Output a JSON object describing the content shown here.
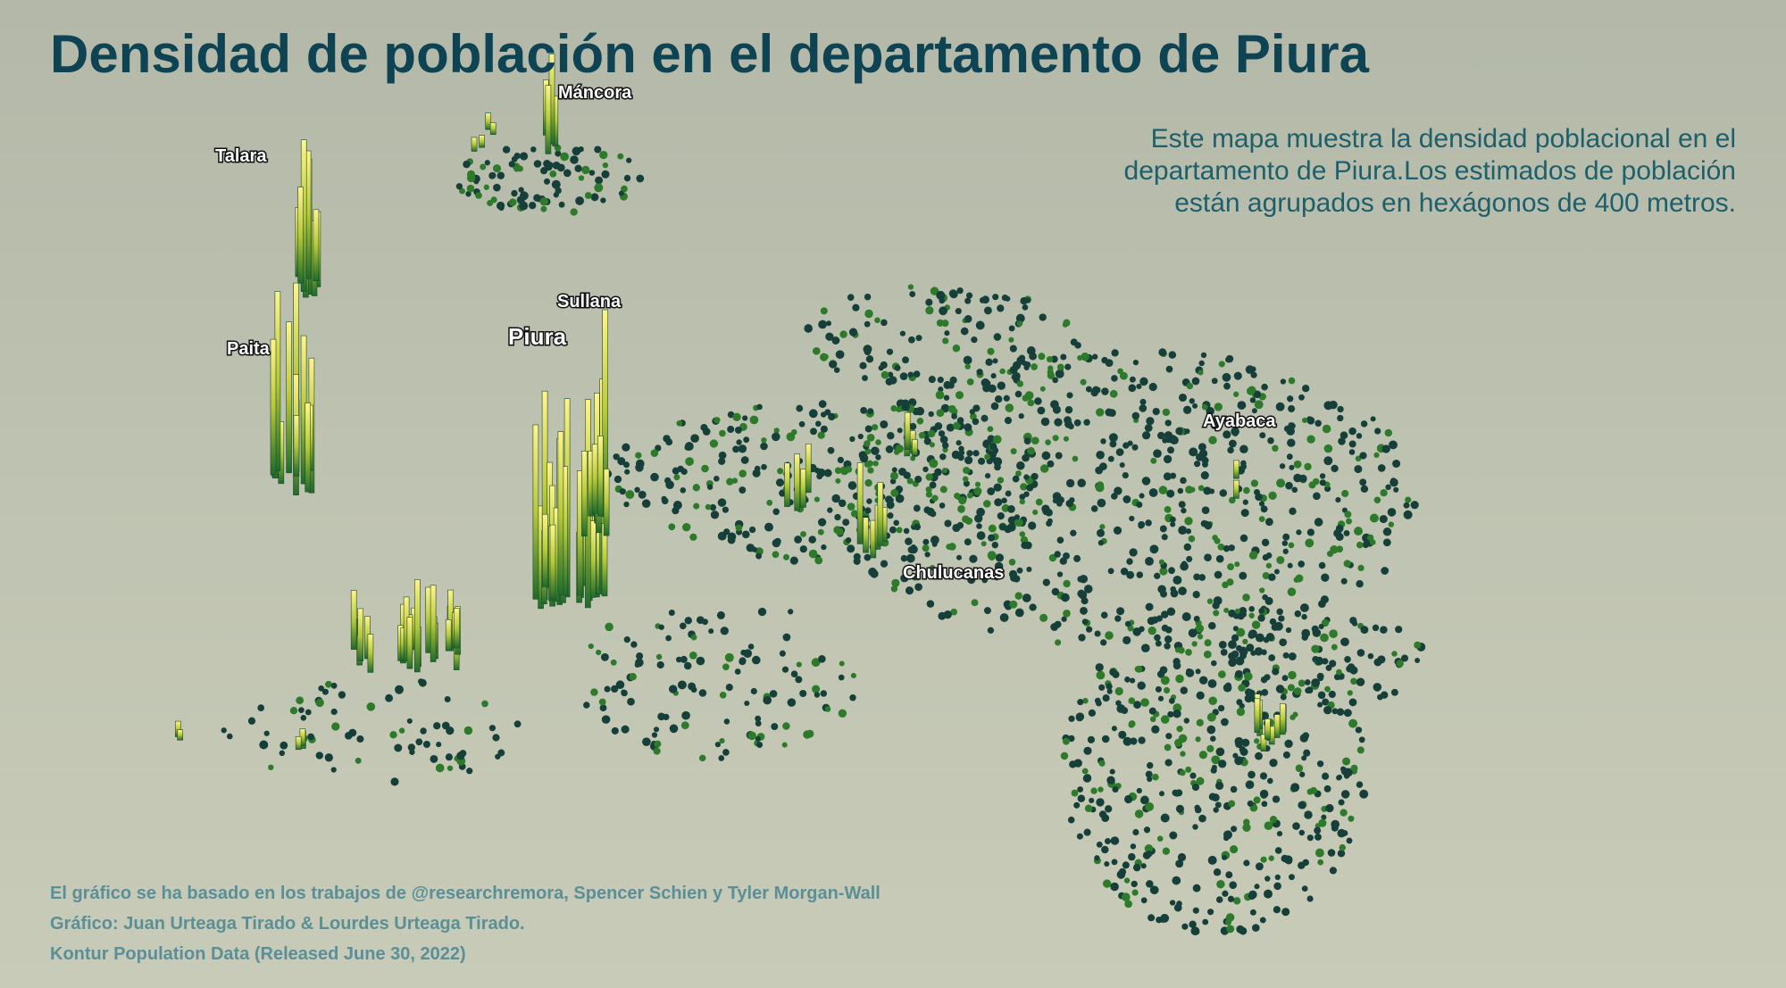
{
  "header": {
    "title": "Densidad de población en el departamento de Piura",
    "description": "Este mapa muestra la densidad poblacional en el departamento de Piura.Los estimados de población están agrupados en hexágonos de 400 metros."
  },
  "places": [
    {
      "name": "Máncora"
    },
    {
      "name": "Talara"
    },
    {
      "name": "Sullana"
    },
    {
      "name": "Piura"
    },
    {
      "name": "Paita"
    },
    {
      "name": "Ayabaca"
    },
    {
      "name": "Chulucanas"
    }
  ],
  "credits": [
    "El gráfico se ha basado en los trabajos de @researchremora, Spencer Schien y Tyler Morgan-Wall",
    "Gráfico: Juan Urteaga Tirado & Lourdes Urteaga Tirado.",
    "Kontur Population Data (Released June 30, 2022)"
  ]
}
